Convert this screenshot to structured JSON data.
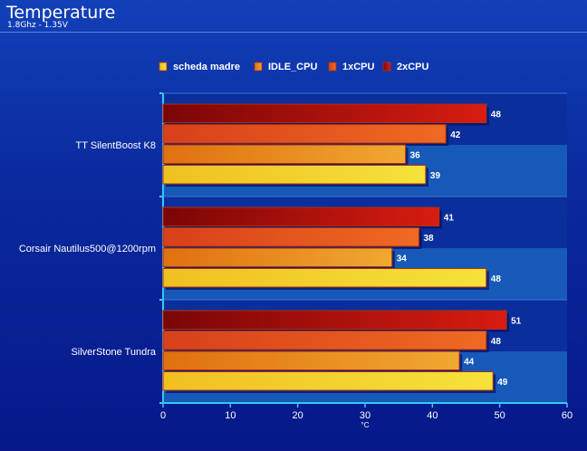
{
  "header": {
    "title": "Temperature",
    "subtitle": "1.8Ghz - 1.35V"
  },
  "colors": {
    "scheda madre": "#f5e23a",
    "IDLE_CPU": "#f0a830",
    "1xCPU": "#ee6a22",
    "2xCPU": "#d81c10"
  },
  "chart_data": {
    "type": "bar",
    "orientation": "horizontal",
    "categories": [
      "TT SilentBoost K8",
      "Corsair Nautilus500@1200rpm",
      "SilverStone Tundra"
    ],
    "series": [
      {
        "name": "scheda madre",
        "values": [
          39,
          48,
          49
        ]
      },
      {
        "name": "IDLE_CPU",
        "values": [
          36,
          34,
          44
        ]
      },
      {
        "name": "1xCPU",
        "values": [
          42,
          38,
          48
        ]
      },
      {
        "name": "2xCPU",
        "values": [
          48,
          41,
          51
        ]
      }
    ],
    "xlabel": "°C",
    "xlim": [
      0,
      60
    ],
    "xticks": [
      "0",
      "10",
      "20",
      "30",
      "40",
      "50",
      "60"
    ],
    "legend_position": "top",
    "data_labels": true,
    "grid": false
  }
}
